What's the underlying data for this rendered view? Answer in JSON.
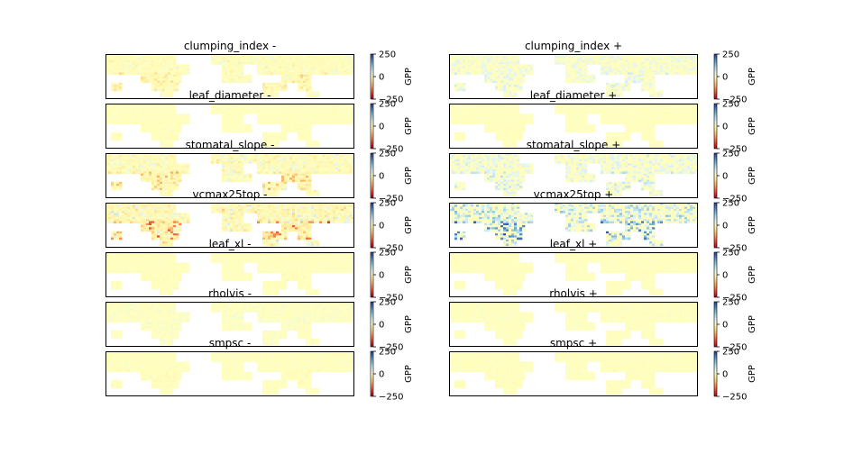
{
  "figure": {
    "rows": 7,
    "cols": 2
  },
  "chart_data": {
    "type": "heatmap",
    "value_name": "GPP",
    "color_scale": "RdYlBu",
    "vmin": -250,
    "vmax": 250,
    "colorbar_ticks": [
      "250",
      "0",
      "−250"
    ],
    "colorbar_label": "GPP",
    "panels": [
      {
        "title": "clumping_index -",
        "mean_signal": -55,
        "noise": 35
      },
      {
        "title": "clumping_index +",
        "mean_signal": 30,
        "noise": 35
      },
      {
        "title": "leaf_diameter -",
        "mean_signal": -8,
        "noise": 8
      },
      {
        "title": "leaf_diameter +",
        "mean_signal": -6,
        "noise": 8
      },
      {
        "title": "stomatal_slope -",
        "mean_signal": -90,
        "noise": 55
      },
      {
        "title": "stomatal_slope +",
        "mean_signal": 45,
        "noise": 45
      },
      {
        "title": "vcmax25top -",
        "mean_signal": -150,
        "noise": 80
      },
      {
        "title": "vcmax25top +",
        "mean_signal": 120,
        "noise": 70
      },
      {
        "title": "leaf_xl -",
        "mean_signal": -10,
        "noise": 10
      },
      {
        "title": "leaf_xl +",
        "mean_signal": -8,
        "noise": 10
      },
      {
        "title": "rholvis -",
        "mean_signal": 5,
        "noise": 15
      },
      {
        "title": "rholvis +",
        "mean_signal": -5,
        "noise": 12
      },
      {
        "title": "smpsc -",
        "mean_signal": -12,
        "noise": 12
      },
      {
        "title": "smpsc +",
        "mean_signal": -10,
        "noise": 12
      }
    ]
  }
}
